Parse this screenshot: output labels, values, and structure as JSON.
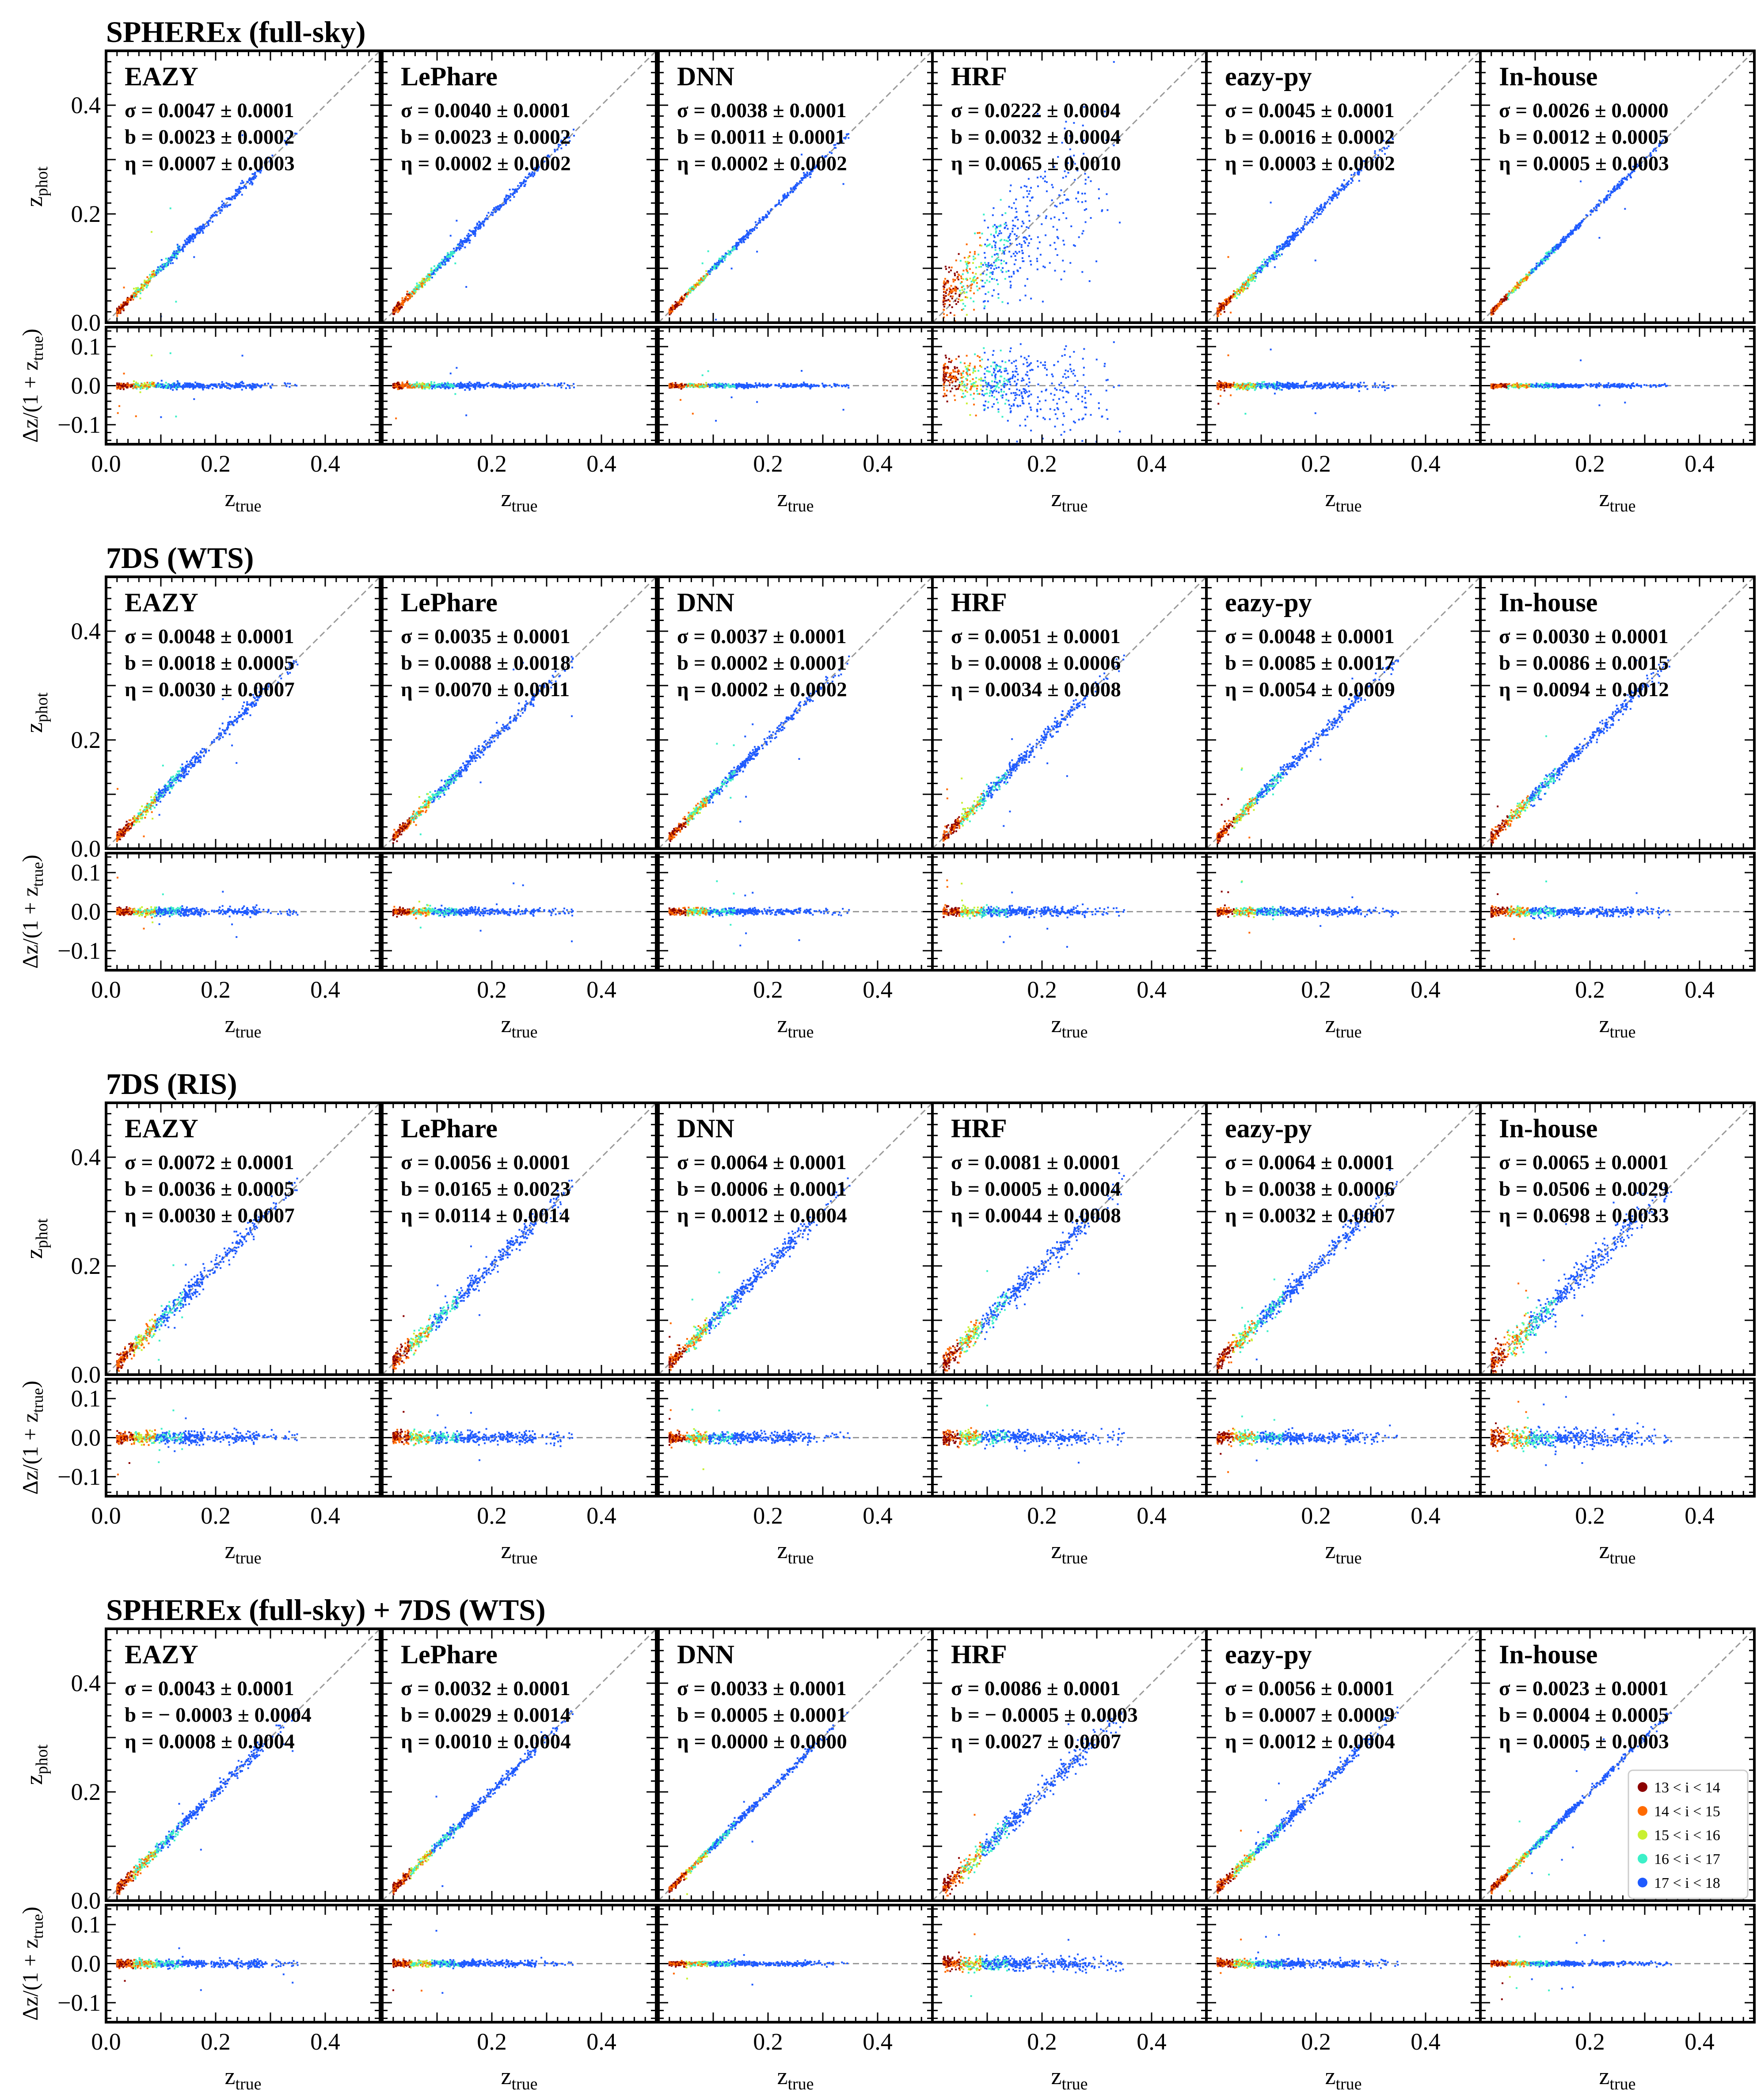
{
  "figure": {
    "colors": {
      "axis": "#000000",
      "diagonal": "#999999",
      "zero_line": "#999999",
      "mag_bins": [
        "#8b0000",
        "#ff6a00",
        "#c8f032",
        "#3cf0c8",
        "#1e5aff"
      ]
    },
    "axis_labels": {
      "ylabel_top_prefix": "z",
      "ylabel_top_sub": "phot",
      "ylabel_bottom_prefix": "Δz/(1 + z",
      "ylabel_bottom_sub": "true",
      "ylabel_bottom_suffix": ")",
      "xlabel_prefix": "z",
      "xlabel_sub": "true"
    },
    "legend": {
      "entries": [
        "13 < i < 14",
        "14 < i < 15",
        "15 < i < 16",
        "16 < i < 17",
        "17 < i < 18"
      ]
    }
  },
  "chart_data": {
    "type": "scatter",
    "x_range": [
      0.0,
      0.5
    ],
    "y_range_top": [
      0.0,
      0.5
    ],
    "y_range_bottom": [
      -0.15,
      0.15
    ],
    "x_ticks_labeled": [
      0.0,
      0.2,
      0.4
    ],
    "x_tick_labels": [
      "0.0",
      "0.2",
      "0.4"
    ],
    "y_ticks_top": [
      0.0,
      0.2,
      0.4
    ],
    "y_tick_labels_top": [
      "0.0",
      "0.2",
      "0.4"
    ],
    "y_ticks_bottom": [
      -0.1,
      0.0,
      0.1
    ],
    "y_tick_labels_bottom": [
      "−0.1",
      "0.0",
      "0.1"
    ],
    "sections": [
      {
        "title": "SPHEREx (full-sky)",
        "panels": [
          {
            "method": "EAZY",
            "sigma": "σ = 0.0047 ± 0.0001",
            "b": "b = 0.0023 ± 0.0002",
            "eta": "η = 0.0007 ± 0.0003",
            "scatter": 0.004
          },
          {
            "method": "LePhare",
            "sigma": "σ = 0.0040 ± 0.0001",
            "b": "b = 0.0023 ± 0.0002",
            "eta": "η = 0.0002 ± 0.0002",
            "scatter": 0.0035
          },
          {
            "method": "DNN",
            "sigma": "σ = 0.0038 ± 0.0001",
            "b": "b = 0.0011 ± 0.0001",
            "eta": "η = 0.0002 ± 0.0002",
            "scatter": 0.0025
          },
          {
            "method": "HRF",
            "sigma": "σ = 0.0222 ± 0.0004",
            "b": "b = 0.0032 ± 0.0004",
            "eta": "η = 0.0065 ± 0.0010",
            "scatter": 0.03
          },
          {
            "method": "eazy-py",
            "sigma": "σ = 0.0045 ± 0.0001",
            "b": "b = 0.0016 ± 0.0002",
            "eta": "η = 0.0003 ± 0.0002",
            "scatter": 0.004
          },
          {
            "method": "In-house",
            "sigma": "σ = 0.0026 ± 0.0000",
            "b": "b = 0.0012 ± 0.0005",
            "eta": "η = 0.0005 ± 0.0003",
            "scatter": 0.0025
          }
        ]
      },
      {
        "title": "7DS (WTS)",
        "panels": [
          {
            "method": "EAZY",
            "sigma": "σ = 0.0048 ± 0.0001",
            "b": "b = 0.0018 ± 0.0005",
            "eta": "η = 0.0030 ± 0.0007",
            "scatter": 0.005
          },
          {
            "method": "LePhare",
            "sigma": "σ = 0.0035 ± 0.0001",
            "b": "b = 0.0088 ± 0.0018",
            "eta": "η = 0.0070 ± 0.0011",
            "scatter": 0.005
          },
          {
            "method": "DNN",
            "sigma": "σ = 0.0037 ± 0.0001",
            "b": "b = 0.0002 ± 0.0001",
            "eta": "η = 0.0002 ± 0.0002",
            "scatter": 0.004
          },
          {
            "method": "HRF",
            "sigma": "σ = 0.0051 ± 0.0001",
            "b": "b = 0.0008 ± 0.0006",
            "eta": "η = 0.0034 ± 0.0008",
            "scatter": 0.006
          },
          {
            "method": "eazy-py",
            "sigma": "σ = 0.0048 ± 0.0001",
            "b": "b = 0.0085 ± 0.0017",
            "eta": "η = 0.0054 ± 0.0009",
            "scatter": 0.005
          },
          {
            "method": "In-house",
            "sigma": "σ = 0.0030 ± 0.0001",
            "b": "b = 0.0086 ± 0.0015",
            "eta": "η = 0.0094 ± 0.0012",
            "scatter": 0.006
          }
        ]
      },
      {
        "title": "7DS (RIS)",
        "panels": [
          {
            "method": "EAZY",
            "sigma": "σ = 0.0072 ± 0.0001",
            "b": "b = 0.0036 ± 0.0005",
            "eta": "η = 0.0030 ± 0.0007",
            "scatter": 0.008
          },
          {
            "method": "LePhare",
            "sigma": "σ = 0.0056 ± 0.0001",
            "b": "b = 0.0165 ± 0.0023",
            "eta": "η = 0.0114 ± 0.0014",
            "scatter": 0.008
          },
          {
            "method": "DNN",
            "sigma": "σ = 0.0064 ± 0.0001",
            "b": "b = 0.0006 ± 0.0001",
            "eta": "η = 0.0012 ± 0.0004",
            "scatter": 0.007
          },
          {
            "method": "HRF",
            "sigma": "σ = 0.0081 ± 0.0001",
            "b": "b = 0.0005 ± 0.0004",
            "eta": "η = 0.0044 ± 0.0008",
            "scatter": 0.009
          },
          {
            "method": "eazy-py",
            "sigma": "σ = 0.0064 ± 0.0001",
            "b": "b = 0.0038 ± 0.0006",
            "eta": "η = 0.0032 ± 0.0007",
            "scatter": 0.008
          },
          {
            "method": "In-house",
            "sigma": "σ = 0.0065 ± 0.0001",
            "b": "b = 0.0506 ± 0.0029",
            "eta": "η = 0.0698 ± 0.0033",
            "scatter": 0.012
          }
        ]
      },
      {
        "title": "SPHEREx (full-sky) + 7DS (WTS)",
        "panels": [
          {
            "method": "EAZY",
            "sigma": "σ = 0.0043 ± 0.0001",
            "b": "b = − 0.0003 ± 0.0004",
            "eta": "η = 0.0008 ± 0.0004",
            "scatter": 0.005
          },
          {
            "method": "LePhare",
            "sigma": "σ = 0.0032 ± 0.0001",
            "b": "b = 0.0029 ± 0.0014",
            "eta": "η = 0.0010 ± 0.0004",
            "scatter": 0.004
          },
          {
            "method": "DNN",
            "sigma": "σ = 0.0033 ± 0.0001",
            "b": "b = 0.0005 ± 0.0001",
            "eta": "η = 0.0000 ± 0.0000",
            "scatter": 0.003
          },
          {
            "method": "HRF",
            "sigma": "σ = 0.0086 ± 0.0001",
            "b": "b = − 0.0005 ± 0.0003",
            "eta": "η = 0.0027 ± 0.0007",
            "scatter": 0.009
          },
          {
            "method": "eazy-py",
            "sigma": "σ = 0.0056 ± 0.0001",
            "b": "b = 0.0007 ± 0.0009",
            "eta": "η = 0.0012 ± 0.0004",
            "scatter": 0.005
          },
          {
            "method": "In-house",
            "sigma": "σ = 0.0023 ± 0.0001",
            "b": "b = 0.0004 ± 0.0005",
            "eta": "η = 0.0005 ± 0.0003",
            "scatter": 0.003
          }
        ]
      }
    ]
  }
}
